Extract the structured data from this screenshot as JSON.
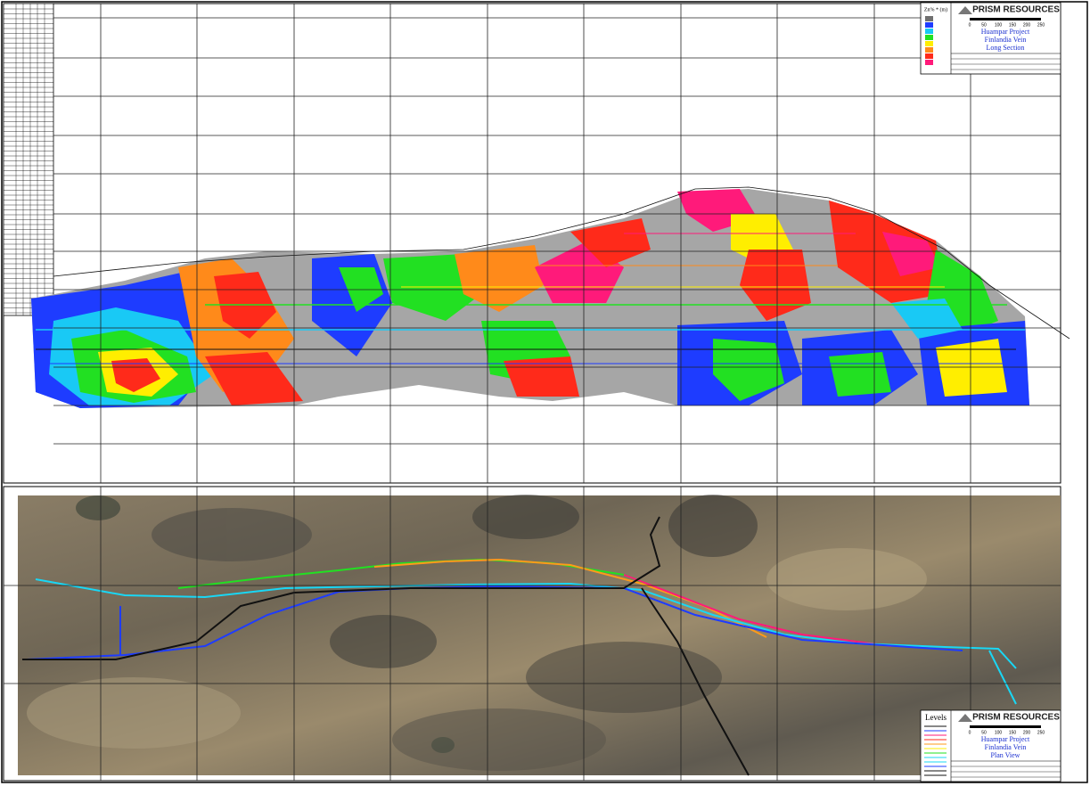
{
  "long_section": {
    "legend": {
      "title": "Zn% * (m)"
    },
    "title_block": {
      "company": "PRISM RESOURCES",
      "scale_labels": [
        "0",
        "50",
        "100",
        "150",
        "200",
        "250"
      ],
      "project": "Huampar Project",
      "vein": "Finlandia Vein",
      "view": "Long Section"
    }
  },
  "plan_view": {
    "legend": {
      "title": "Levels"
    },
    "title_block": {
      "company": "PRISM RESOURCES",
      "scale_labels": [
        "0",
        "50",
        "100",
        "150",
        "200",
        "250"
      ],
      "project": "Huampar Project",
      "vein": "Finlandia Vein",
      "view": "Plan View"
    }
  }
}
